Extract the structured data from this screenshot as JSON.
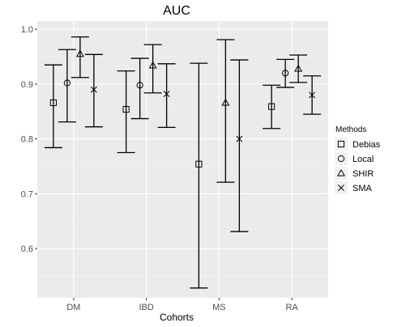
{
  "chart_data": {
    "type": "errorbar",
    "title": "AUC",
    "xlabel": "Cohorts",
    "ylabel": "",
    "categories": [
      "DM",
      "IBD",
      "MS",
      "RA"
    ],
    "ylim": [
      0.51,
      1.015
    ],
    "yticks": [
      0.6,
      0.7,
      0.8,
      0.9,
      1.0
    ],
    "ytick_labels": [
      "0.6",
      "0.7",
      "0.8",
      "0.9",
      "1.0"
    ],
    "grid": true,
    "background": "#ebebeb",
    "legend": {
      "title": "Methods",
      "placement": "right"
    },
    "series": [
      {
        "name": "Debias",
        "shape": "square",
        "points": [
          {
            "category": "DM",
            "y": 0.866,
            "low": 0.784,
            "high": 0.935
          },
          {
            "category": "IBD",
            "y": 0.854,
            "low": 0.775,
            "high": 0.924
          },
          {
            "category": "MS",
            "y": 0.754,
            "low": 0.528,
            "high": 0.938
          },
          {
            "category": "RA",
            "y": 0.859,
            "low": 0.819,
            "high": 0.898
          }
        ]
      },
      {
        "name": "Local",
        "shape": "circle",
        "points": [
          {
            "category": "DM",
            "y": 0.902,
            "low": 0.831,
            "high": 0.963
          },
          {
            "category": "IBD",
            "y": 0.898,
            "low": 0.837,
            "high": 0.947
          },
          {
            "category": "RA",
            "y": 0.92,
            "low": 0.894,
            "high": 0.945
          }
        ]
      },
      {
        "name": "SHIR",
        "shape": "triangle",
        "points": [
          {
            "category": "DM",
            "y": 0.955,
            "low": 0.912,
            "high": 0.986
          },
          {
            "category": "IBD",
            "y": 0.934,
            "low": 0.884,
            "high": 0.972
          },
          {
            "category": "MS",
            "y": 0.866,
            "low": 0.721,
            "high": 0.981
          },
          {
            "category": "RA",
            "y": 0.928,
            "low": 0.903,
            "high": 0.953
          }
        ]
      },
      {
        "name": "SMA",
        "shape": "cross",
        "points": [
          {
            "category": "DM",
            "y": 0.89,
            "low": 0.822,
            "high": 0.954
          },
          {
            "category": "IBD",
            "y": 0.882,
            "low": 0.821,
            "high": 0.937
          },
          {
            "category": "MS",
            "y": 0.8,
            "low": 0.631,
            "high": 0.944
          },
          {
            "category": "RA",
            "y": 0.88,
            "low": 0.845,
            "high": 0.915
          }
        ]
      }
    ]
  }
}
